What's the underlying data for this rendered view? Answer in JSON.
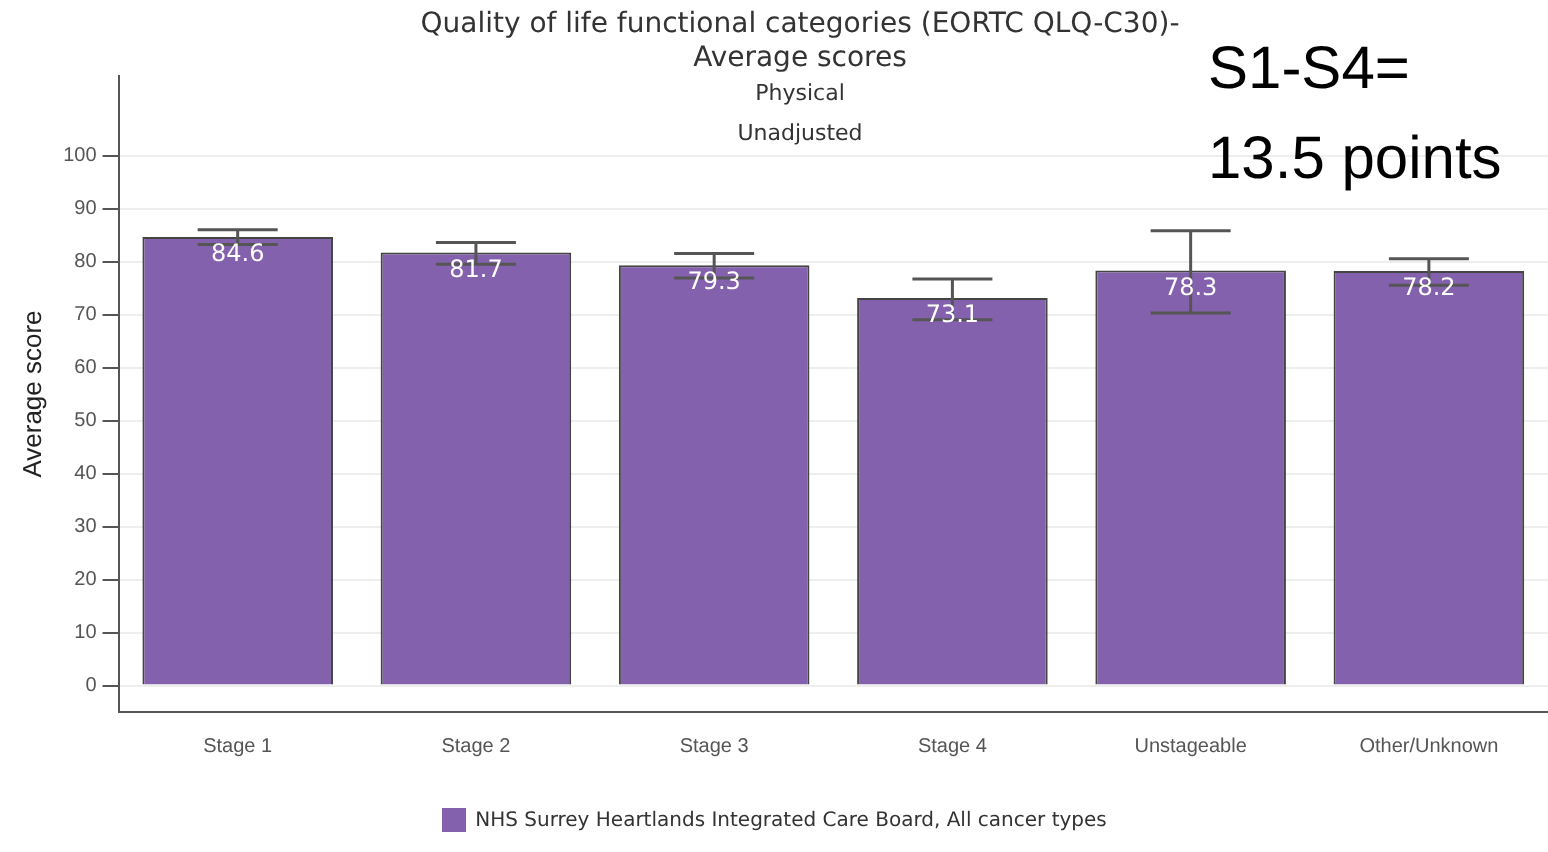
{
  "chart_data": {
    "type": "bar",
    "title": "Quality of life functional categories (EORTC QLQ-C30)- Average scores",
    "subtitle": "Physical",
    "annotations": [
      "Unadjusted",
      "S1-S4=\n13.5 points"
    ],
    "ylabel": "Average score",
    "categories": [
      "Stage 1",
      "Stage 2",
      "Stage 3",
      "Stage 4",
      "Unstageable",
      "Other/Unknown"
    ],
    "series": [
      {
        "name": "NHS Surrey Heartlands Integrated Care Board, All cancer types",
        "color": "#8461ad",
        "values": [
          84.6,
          81.7,
          79.3,
          73.1,
          78.3,
          78.2
        ],
        "errors": [
          [
            83.2,
            86.0
          ],
          [
            79.5,
            83.6
          ],
          [
            76.9,
            81.5
          ],
          [
            69.0,
            76.7
          ],
          [
            70.3,
            85.8
          ],
          [
            75.5,
            80.5
          ]
        ]
      }
    ],
    "ylim": [
      -5,
      115
    ],
    "yticks": [
      0,
      10,
      20,
      30,
      40,
      50,
      60,
      70,
      80,
      90,
      100
    ],
    "grid": "y",
    "legend": "bottom",
    "data_labels": true
  }
}
